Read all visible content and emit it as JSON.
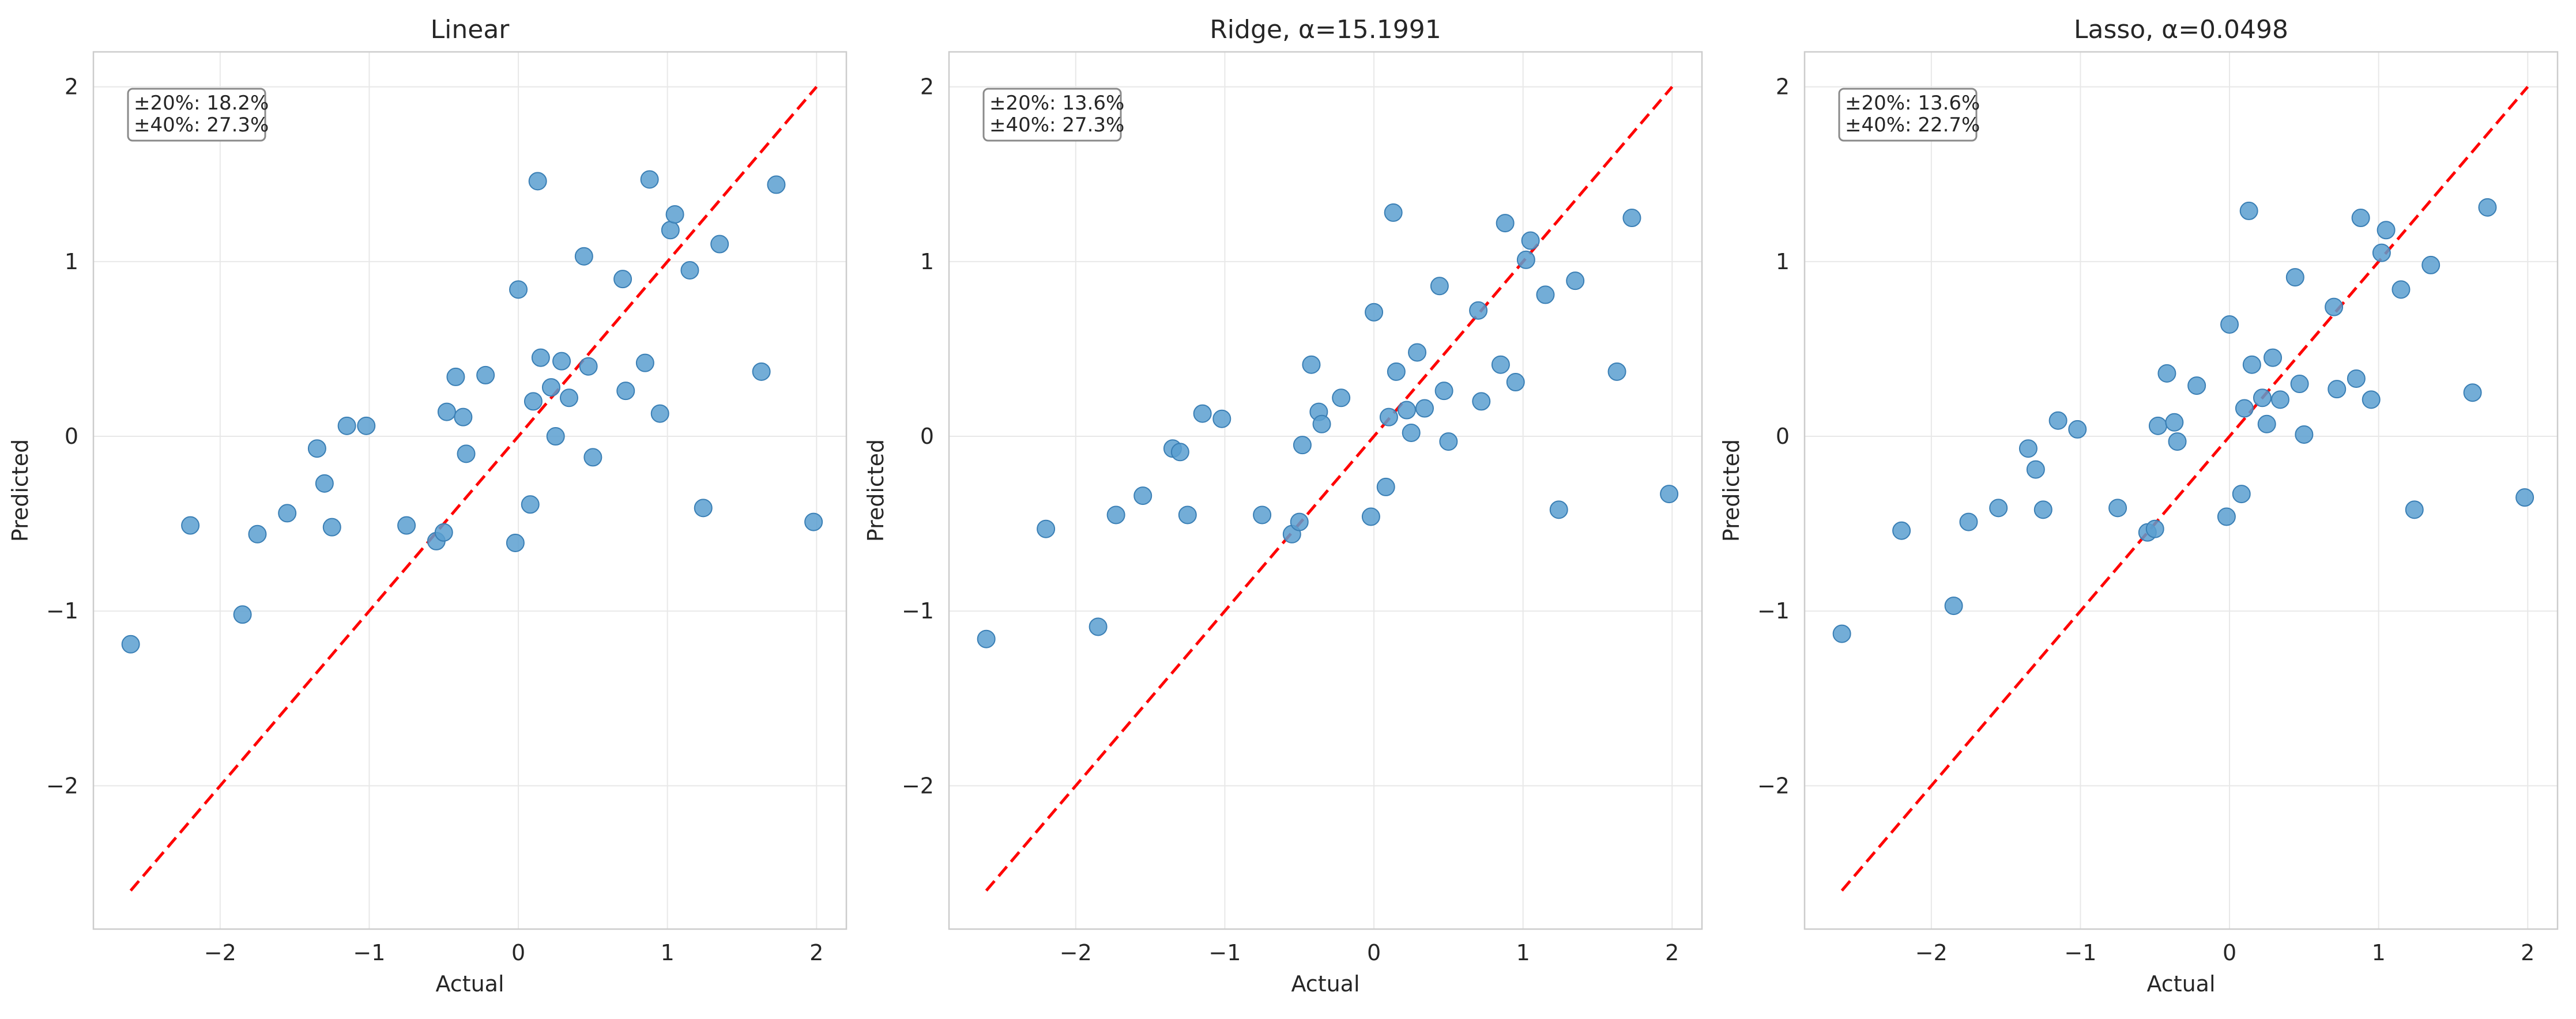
{
  "chart_data": [
    {
      "type": "scatter",
      "title": "Linear",
      "xlabel": "Actual",
      "ylabel": "Predicted",
      "xlim": [
        -2.85,
        2.2
      ],
      "ylim": [
        -2.82,
        2.2
      ],
      "xticks": [
        -2,
        -1,
        0,
        1,
        2
      ],
      "yticks": [
        -2,
        -1,
        0,
        1,
        2
      ],
      "grid": true,
      "annotation": [
        "±20%: 18.2%",
        "±40%: 27.3%"
      ],
      "reference_line": {
        "from": [
          -2.6,
          -2.6
        ],
        "to": [
          2.0,
          2.0
        ],
        "color": "#ff0000",
        "style": "dashed"
      },
      "points": [
        [
          -2.6,
          -1.19
        ],
        [
          -2.2,
          -0.51
        ],
        [
          -1.85,
          -1.02
        ],
        [
          -1.75,
          -0.56
        ],
        [
          -1.55,
          -0.44
        ],
        [
          -1.35,
          -0.07
        ],
        [
          -1.3,
          -0.27
        ],
        [
          -1.25,
          -0.52
        ],
        [
          -1.15,
          0.06
        ],
        [
          -1.02,
          0.06
        ],
        [
          -0.75,
          -0.51
        ],
        [
          -0.55,
          -0.6
        ],
        [
          -0.5,
          -0.55
        ],
        [
          -0.48,
          0.14
        ],
        [
          -0.42,
          0.34
        ],
        [
          -0.37,
          0.11
        ],
        [
          -0.35,
          -0.1
        ],
        [
          -0.22,
          0.35
        ],
        [
          0.0,
          0.84
        ],
        [
          -0.02,
          -0.61
        ],
        [
          0.08,
          -0.39
        ],
        [
          0.1,
          0.2
        ],
        [
          0.13,
          1.46
        ],
        [
          0.15,
          0.45
        ],
        [
          0.22,
          0.28
        ],
        [
          0.25,
          0.0
        ],
        [
          0.29,
          0.43
        ],
        [
          0.34,
          0.22
        ],
        [
          0.44,
          1.03
        ],
        [
          0.47,
          0.4
        ],
        [
          0.5,
          -0.12
        ],
        [
          0.7,
          0.9
        ],
        [
          0.72,
          0.26
        ],
        [
          0.85,
          0.42
        ],
        [
          0.88,
          1.47
        ],
        [
          0.95,
          0.13
        ],
        [
          1.02,
          1.18
        ],
        [
          1.05,
          1.27
        ],
        [
          1.15,
          0.95
        ],
        [
          1.24,
          -0.41
        ],
        [
          1.35,
          1.1
        ],
        [
          1.63,
          0.37
        ],
        [
          1.73,
          1.44
        ],
        [
          1.98,
          -0.49
        ]
      ]
    },
    {
      "type": "scatter",
      "title": "Ridge, α=15.1991",
      "xlabel": "Actual",
      "ylabel": "Predicted",
      "xlim": [
        -2.85,
        2.2
      ],
      "ylim": [
        -2.82,
        2.2
      ],
      "xticks": [
        -2,
        -1,
        0,
        1,
        2
      ],
      "yticks": [
        -2,
        -1,
        0,
        1,
        2
      ],
      "grid": true,
      "annotation": [
        "±20%: 13.6%",
        "±40%: 27.3%"
      ],
      "reference_line": {
        "from": [
          -2.6,
          -2.6
        ],
        "to": [
          2.0,
          2.0
        ],
        "color": "#ff0000",
        "style": "dashed"
      },
      "points": [
        [
          -2.6,
          -1.16
        ],
        [
          -2.2,
          -0.53
        ],
        [
          -1.85,
          -1.09
        ],
        [
          -1.73,
          -0.45
        ],
        [
          -1.55,
          -0.34
        ],
        [
          -1.35,
          -0.07
        ],
        [
          -1.3,
          -0.09
        ],
        [
          -1.25,
          -0.45
        ],
        [
          -1.15,
          0.13
        ],
        [
          -1.02,
          0.1
        ],
        [
          -0.75,
          -0.45
        ],
        [
          -0.55,
          -0.56
        ],
        [
          -0.5,
          -0.49
        ],
        [
          -0.48,
          -0.05
        ],
        [
          -0.42,
          0.41
        ],
        [
          -0.37,
          0.14
        ],
        [
          -0.35,
          0.07
        ],
        [
          -0.22,
          0.22
        ],
        [
          0.0,
          0.71
        ],
        [
          -0.02,
          -0.46
        ],
        [
          0.08,
          -0.29
        ],
        [
          0.1,
          0.11
        ],
        [
          0.13,
          1.28
        ],
        [
          0.15,
          0.37
        ],
        [
          0.22,
          0.15
        ],
        [
          0.25,
          0.02
        ],
        [
          0.29,
          0.48
        ],
        [
          0.34,
          0.16
        ],
        [
          0.44,
          0.86
        ],
        [
          0.47,
          0.26
        ],
        [
          0.5,
          -0.03
        ],
        [
          0.7,
          0.72
        ],
        [
          0.72,
          0.2
        ],
        [
          0.85,
          0.41
        ],
        [
          0.88,
          1.22
        ],
        [
          0.95,
          0.31
        ],
        [
          1.02,
          1.01
        ],
        [
          1.05,
          1.12
        ],
        [
          1.15,
          0.81
        ],
        [
          1.24,
          -0.42
        ],
        [
          1.35,
          0.89
        ],
        [
          1.63,
          0.37
        ],
        [
          1.73,
          1.25
        ],
        [
          1.98,
          -0.33
        ]
      ]
    },
    {
      "type": "scatter",
      "title": "Lasso, α=0.0498",
      "xlabel": "Actual",
      "ylabel": "Predicted",
      "xlim": [
        -2.85,
        2.2
      ],
      "ylim": [
        -2.82,
        2.2
      ],
      "xticks": [
        -2,
        -1,
        0,
        1,
        2
      ],
      "yticks": [
        -2,
        -1,
        0,
        1,
        2
      ],
      "grid": true,
      "annotation": [
        "±20%: 13.6%",
        "±40%: 22.7%"
      ],
      "reference_line": {
        "from": [
          -2.6,
          -2.6
        ],
        "to": [
          2.0,
          2.0
        ],
        "color": "#ff0000",
        "style": "dashed"
      },
      "points": [
        [
          -2.6,
          -1.13
        ],
        [
          -2.2,
          -0.54
        ],
        [
          -1.85,
          -0.97
        ],
        [
          -1.75,
          -0.49
        ],
        [
          -1.55,
          -0.41
        ],
        [
          -1.35,
          -0.07
        ],
        [
          -1.3,
          -0.19
        ],
        [
          -1.25,
          -0.42
        ],
        [
          -1.15,
          0.09
        ],
        [
          -1.02,
          0.04
        ],
        [
          -0.75,
          -0.41
        ],
        [
          -0.55,
          -0.55
        ],
        [
          -0.5,
          -0.53
        ],
        [
          -0.48,
          0.06
        ],
        [
          -0.42,
          0.36
        ],
        [
          -0.37,
          0.08
        ],
        [
          -0.35,
          -0.03
        ],
        [
          -0.22,
          0.29
        ],
        [
          0.0,
          0.64
        ],
        [
          -0.02,
          -0.46
        ],
        [
          0.08,
          -0.33
        ],
        [
          0.1,
          0.16
        ],
        [
          0.13,
          1.29
        ],
        [
          0.15,
          0.41
        ],
        [
          0.22,
          0.22
        ],
        [
          0.25,
          0.07
        ],
        [
          0.29,
          0.45
        ],
        [
          0.34,
          0.21
        ],
        [
          0.44,
          0.91
        ],
        [
          0.47,
          0.3
        ],
        [
          0.5,
          0.01
        ],
        [
          0.7,
          0.74
        ],
        [
          0.72,
          0.27
        ],
        [
          0.85,
          0.33
        ],
        [
          0.88,
          1.25
        ],
        [
          0.95,
          0.21
        ],
        [
          1.02,
          1.05
        ],
        [
          1.05,
          1.18
        ],
        [
          1.15,
          0.84
        ],
        [
          1.24,
          -0.42
        ],
        [
          1.35,
          0.98
        ],
        [
          1.63,
          0.25
        ],
        [
          1.73,
          1.31
        ],
        [
          1.98,
          -0.35
        ]
      ]
    }
  ],
  "colors": {
    "points": "#5b9fd0",
    "point_edge": "#3a7fb5",
    "reference": "#ff0000",
    "grid": "#e8e8e8",
    "frame": "#cccccc",
    "text": "#262626"
  }
}
